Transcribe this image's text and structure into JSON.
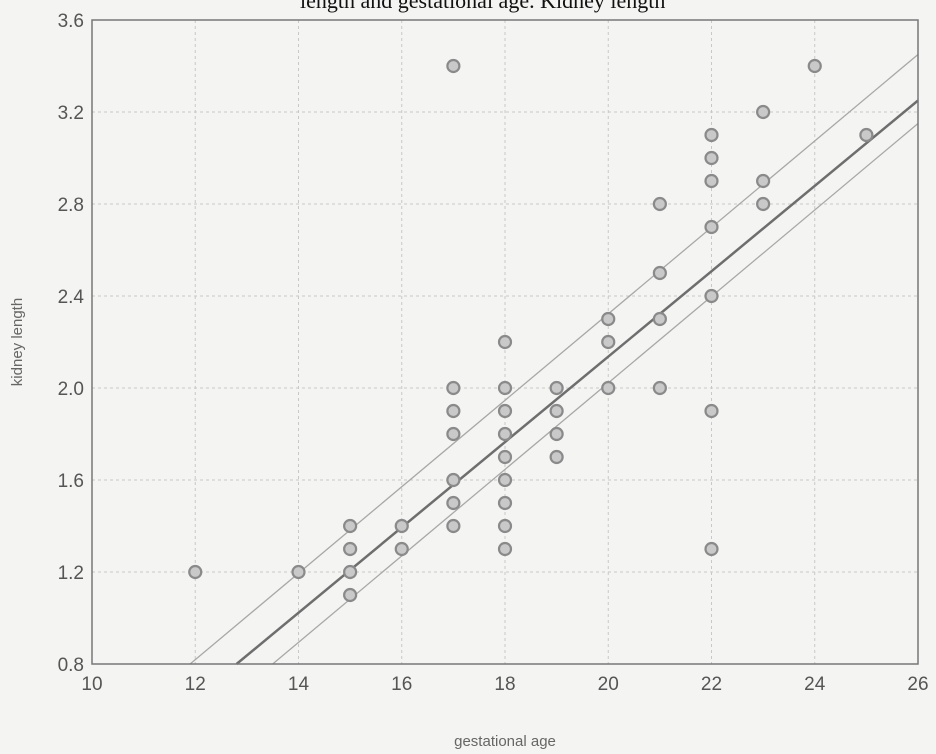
{
  "caption": "length and gestational age. Kidney length",
  "chart_data": {
    "type": "scatter",
    "title": "",
    "xlabel": "gestational age",
    "ylabel": "kidney length",
    "xlim": [
      10,
      26
    ],
    "ylim": [
      0.8,
      3.6
    ],
    "x_ticks": [
      "10",
      "12",
      "14",
      "16",
      "18",
      "20",
      "22",
      "24",
      "26"
    ],
    "y_ticks": [
      "0.8",
      "1.2",
      "1.6",
      "2.0",
      "2.4",
      "2.8",
      "3.2",
      "3.6"
    ],
    "grid": true,
    "series": [
      {
        "points": [
          [
            12,
            1.2
          ],
          [
            14,
            1.2
          ],
          [
            15,
            1.4
          ],
          [
            15,
            1.3
          ],
          [
            15,
            1.2
          ],
          [
            15,
            1.1
          ],
          [
            16,
            1.4
          ],
          [
            16,
            1.3
          ],
          [
            17,
            3.4
          ],
          [
            17,
            2.0
          ],
          [
            17,
            1.9
          ],
          [
            17,
            1.8
          ],
          [
            17,
            1.6
          ],
          [
            17,
            1.5
          ],
          [
            17,
            1.4
          ],
          [
            18,
            2.2
          ],
          [
            18,
            2.0
          ],
          [
            18,
            1.9
          ],
          [
            18,
            1.8
          ],
          [
            18,
            1.7
          ],
          [
            18,
            1.6
          ],
          [
            18,
            1.5
          ],
          [
            18,
            1.4
          ],
          [
            18,
            1.3
          ],
          [
            19,
            2.0
          ],
          [
            19,
            1.9
          ],
          [
            19,
            1.8
          ],
          [
            19,
            1.7
          ],
          [
            20,
            2.3
          ],
          [
            20,
            2.2
          ],
          [
            20,
            2.0
          ],
          [
            21,
            2.8
          ],
          [
            21,
            2.5
          ],
          [
            21,
            2.3
          ],
          [
            21,
            2.0
          ],
          [
            22,
            3.1
          ],
          [
            22,
            3.0
          ],
          [
            22,
            2.9
          ],
          [
            22,
            2.7
          ],
          [
            22,
            2.4
          ],
          [
            22,
            1.9
          ],
          [
            22,
            1.3
          ],
          [
            23,
            3.2
          ],
          [
            23,
            2.9
          ],
          [
            23,
            2.8
          ],
          [
            24,
            3.4
          ],
          [
            25,
            3.1
          ]
        ]
      }
    ],
    "fit_line": [
      [
        12.8,
        0.8
      ],
      [
        26,
        3.25
      ]
    ],
    "confidence_upper": [
      [
        11.9,
        0.8
      ],
      [
        26,
        3.45
      ]
    ],
    "confidence_lower": [
      [
        13.5,
        0.8
      ],
      [
        26,
        3.15
      ]
    ],
    "colors": {
      "points": "#8a8a8a",
      "fit": "#6e6e6e",
      "band": "#a8a8a8",
      "grid": "#c8c8c8"
    }
  }
}
